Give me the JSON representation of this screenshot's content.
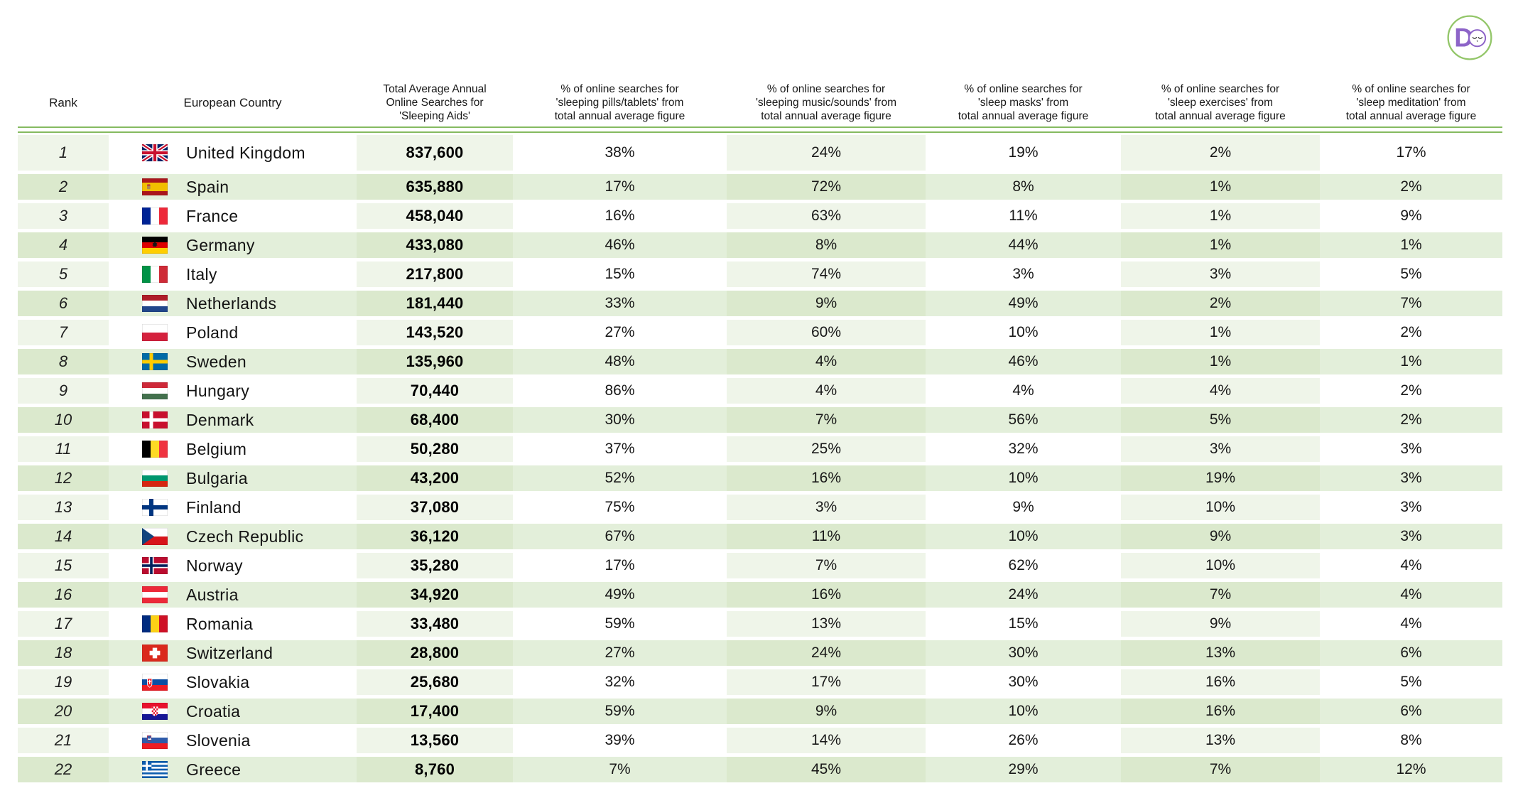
{
  "logo": {
    "letter": "D",
    "ring_color": "#93c669",
    "purple": "#8d64c8",
    "face_color": "#2f2f2f"
  },
  "colors": {
    "divider_green": "#85ba60",
    "row_light_tint": "#eff5e9",
    "row_green_tint": "#dbe9cd",
    "row_green_plain": "#e3efda"
  },
  "table": {
    "columns": [
      {
        "id": "rank",
        "lines": [
          "Rank"
        ]
      },
      {
        "id": "country",
        "lines": [
          "European Country"
        ]
      },
      {
        "id": "total",
        "lines": [
          "Total Average Annual",
          "Online Searches for",
          "'Sleeping Aids'"
        ]
      },
      {
        "id": "pills",
        "lines": [
          "% of online searches for",
          "'sleeping pills/tablets' from",
          "total annual average figure"
        ]
      },
      {
        "id": "music",
        "lines": [
          "% of online searches for",
          "'sleeping music/sounds' from",
          "total annual average figure"
        ]
      },
      {
        "id": "masks",
        "lines": [
          "% of online searches for",
          "'sleep masks' from",
          "total annual average figure"
        ]
      },
      {
        "id": "exercises",
        "lines": [
          "% of online searches for",
          "'sleep exercises' from",
          "total annual average figure"
        ]
      },
      {
        "id": "meditation",
        "lines": [
          "% of online searches for",
          "'sleep meditation' from",
          "total annual average figure"
        ]
      }
    ],
    "rows": [
      {
        "rank": "1",
        "flag": "gb",
        "country": "United Kingdom",
        "total": "837,600",
        "pills": "38%",
        "music": "24%",
        "masks": "19%",
        "exercises": "2%",
        "meditation": "17%"
      },
      {
        "rank": "2",
        "flag": "es",
        "country": "Spain",
        "total": "635,880",
        "pills": "17%",
        "music": "72%",
        "masks": "8%",
        "exercises": "1%",
        "meditation": "2%"
      },
      {
        "rank": "3",
        "flag": "fr",
        "country": "France",
        "total": "458,040",
        "pills": "16%",
        "music": "63%",
        "masks": "11%",
        "exercises": "1%",
        "meditation": "9%"
      },
      {
        "rank": "4",
        "flag": "de",
        "country": "Germany",
        "total": "433,080",
        "pills": "46%",
        "music": "8%",
        "masks": "44%",
        "exercises": "1%",
        "meditation": "1%"
      },
      {
        "rank": "5",
        "flag": "it",
        "country": "Italy",
        "total": "217,800",
        "pills": "15%",
        "music": "74%",
        "masks": "3%",
        "exercises": "3%",
        "meditation": "5%"
      },
      {
        "rank": "6",
        "flag": "nl",
        "country": "Netherlands",
        "total": "181,440",
        "pills": "33%",
        "music": "9%",
        "masks": "49%",
        "exercises": "2%",
        "meditation": "7%"
      },
      {
        "rank": "7",
        "flag": "pl",
        "country": "Poland",
        "total": "143,520",
        "pills": "27%",
        "music": "60%",
        "masks": "10%",
        "exercises": "1%",
        "meditation": "2%"
      },
      {
        "rank": "8",
        "flag": "se",
        "country": "Sweden",
        "total": "135,960",
        "pills": "48%",
        "music": "4%",
        "masks": "46%",
        "exercises": "1%",
        "meditation": "1%"
      },
      {
        "rank": "9",
        "flag": "hu",
        "country": "Hungary",
        "total": "70,440",
        "pills": "86%",
        "music": "4%",
        "masks": "4%",
        "exercises": "4%",
        "meditation": "2%"
      },
      {
        "rank": "10",
        "flag": "dk",
        "country": "Denmark",
        "total": "68,400",
        "pills": "30%",
        "music": "7%",
        "masks": "56%",
        "exercises": "5%",
        "meditation": "2%"
      },
      {
        "rank": "11",
        "flag": "be",
        "country": "Belgium",
        "total": "50,280",
        "pills": "37%",
        "music": "25%",
        "masks": "32%",
        "exercises": "3%",
        "meditation": "3%"
      },
      {
        "rank": "12",
        "flag": "bg",
        "country": "Bulgaria",
        "total": "43,200",
        "pills": "52%",
        "music": "16%",
        "masks": "10%",
        "exercises": "19%",
        "meditation": "3%"
      },
      {
        "rank": "13",
        "flag": "fi",
        "country": "Finland",
        "total": "37,080",
        "pills": "75%",
        "music": "3%",
        "masks": "9%",
        "exercises": "10%",
        "meditation": "3%"
      },
      {
        "rank": "14",
        "flag": "cz",
        "country": "Czech Republic",
        "total": "36,120",
        "pills": "67%",
        "music": "11%",
        "masks": "10%",
        "exercises": "9%",
        "meditation": "3%"
      },
      {
        "rank": "15",
        "flag": "no",
        "country": "Norway",
        "total": "35,280",
        "pills": "17%",
        "music": "7%",
        "masks": "62%",
        "exercises": "10%",
        "meditation": "4%"
      },
      {
        "rank": "16",
        "flag": "at",
        "country": "Austria",
        "total": "34,920",
        "pills": "49%",
        "music": "16%",
        "masks": "24%",
        "exercises": "7%",
        "meditation": "4%"
      },
      {
        "rank": "17",
        "flag": "ro",
        "country": "Romania",
        "total": "33,480",
        "pills": "59%",
        "music": "13%",
        "masks": "15%",
        "exercises": "9%",
        "meditation": "4%"
      },
      {
        "rank": "18",
        "flag": "ch",
        "country": "Switzerland",
        "total": "28,800",
        "pills": "27%",
        "music": "24%",
        "masks": "30%",
        "exercises": "13%",
        "meditation": "6%"
      },
      {
        "rank": "19",
        "flag": "sk",
        "country": "Slovakia",
        "total": "25,680",
        "pills": "32%",
        "music": "17%",
        "masks": "30%",
        "exercises": "16%",
        "meditation": "5%"
      },
      {
        "rank": "20",
        "flag": "hr",
        "country": "Croatia",
        "total": "17,400",
        "pills": "59%",
        "music": "9%",
        "masks": "10%",
        "exercises": "16%",
        "meditation": "6%"
      },
      {
        "rank": "21",
        "flag": "si",
        "country": "Slovenia",
        "total": "13,560",
        "pills": "39%",
        "music": "14%",
        "masks": "26%",
        "exercises": "13%",
        "meditation": "8%"
      },
      {
        "rank": "22",
        "flag": "gr",
        "country": "Greece",
        "total": "8,760",
        "pills": "7%",
        "music": "45%",
        "masks": "29%",
        "exercises": "7%",
        "meditation": "12%"
      }
    ]
  },
  "chart_data": {
    "type": "table",
    "columns": [
      "Rank",
      "European Country",
      "Total Average Annual Online Searches for 'Sleeping Aids'",
      "% of online searches for 'sleeping pills/tablets' from total annual average figure",
      "% of online searches for 'sleeping music/sounds' from total annual average figure",
      "% of online searches for 'sleep masks' from total annual average figure",
      "% of online searches for 'sleep exercises' from total annual average figure",
      "% of online searches for 'sleep meditation' from total annual average figure"
    ],
    "rows": [
      [
        1,
        "United Kingdom",
        837600,
        38,
        24,
        19,
        2,
        17
      ],
      [
        2,
        "Spain",
        635880,
        17,
        72,
        8,
        1,
        2
      ],
      [
        3,
        "France",
        458040,
        16,
        63,
        11,
        1,
        9
      ],
      [
        4,
        "Germany",
        433080,
        46,
        8,
        44,
        1,
        1
      ],
      [
        5,
        "Italy",
        217800,
        15,
        74,
        3,
        3,
        5
      ],
      [
        6,
        "Netherlands",
        181440,
        33,
        9,
        49,
        2,
        7
      ],
      [
        7,
        "Poland",
        143520,
        27,
        60,
        10,
        1,
        2
      ],
      [
        8,
        "Sweden",
        135960,
        48,
        4,
        46,
        1,
        1
      ],
      [
        9,
        "Hungary",
        70440,
        86,
        4,
        4,
        4,
        2
      ],
      [
        10,
        "Denmark",
        68400,
        30,
        7,
        56,
        5,
        2
      ],
      [
        11,
        "Belgium",
        50280,
        37,
        25,
        32,
        3,
        3
      ],
      [
        12,
        "Bulgaria",
        43200,
        52,
        16,
        10,
        19,
        3
      ],
      [
        13,
        "Finland",
        37080,
        75,
        3,
        9,
        10,
        3
      ],
      [
        14,
        "Czech Republic",
        36120,
        67,
        11,
        10,
        9,
        3
      ],
      [
        15,
        "Norway",
        35280,
        17,
        7,
        62,
        10,
        4
      ],
      [
        16,
        "Austria",
        34920,
        49,
        16,
        24,
        7,
        4
      ],
      [
        17,
        "Romania",
        33480,
        59,
        13,
        15,
        9,
        4
      ],
      [
        18,
        "Switzerland",
        28800,
        27,
        24,
        30,
        13,
        6
      ],
      [
        19,
        "Slovakia",
        25680,
        32,
        17,
        30,
        16,
        5
      ],
      [
        20,
        "Croatia",
        17400,
        59,
        9,
        10,
        16,
        6
      ],
      [
        21,
        "Slovenia",
        13560,
        39,
        14,
        26,
        13,
        8
      ],
      [
        22,
        "Greece",
        8760,
        7,
        45,
        29,
        7,
        12
      ]
    ],
    "percent_unit": "%",
    "grid": false,
    "legend": "none"
  }
}
